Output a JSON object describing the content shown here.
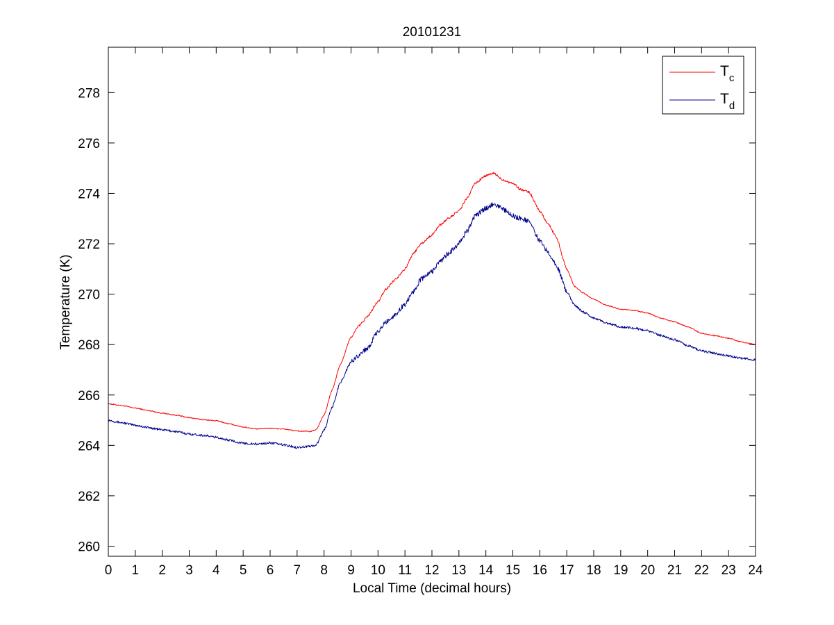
{
  "chart_data": {
    "type": "line",
    "title": "20101231",
    "xlabel": "Local Time (decimal hours)",
    "ylabel": "Temperature (K)",
    "xlim": [
      0,
      24
    ],
    "ylim": [
      259.6,
      279.8
    ],
    "xticks": [
      0,
      1,
      2,
      3,
      4,
      5,
      6,
      7,
      8,
      9,
      10,
      11,
      12,
      13,
      14,
      15,
      16,
      17,
      18,
      19,
      20,
      21,
      22,
      23,
      24
    ],
    "yticks": [
      260,
      262,
      264,
      266,
      268,
      270,
      272,
      274,
      276,
      278
    ],
    "grid": false,
    "legend_position": "top-right",
    "series": [
      {
        "name": "T",
        "name_subscript": "c",
        "color": "#ff0000",
        "x": [
          0,
          0.5,
          1,
          1.5,
          2,
          2.5,
          3,
          3.5,
          4,
          4.5,
          5,
          5.5,
          6,
          6.5,
          7,
          7.5,
          7.7,
          8,
          8.3,
          8.6,
          9,
          9.3,
          9.6,
          10,
          10.3,
          10.6,
          11,
          11.3,
          11.6,
          12,
          12.3,
          12.6,
          13,
          13.3,
          13.6,
          14,
          14.3,
          14.6,
          15,
          15.3,
          15.6,
          16,
          16.3,
          16.6,
          17,
          17.3,
          17.6,
          18,
          18.5,
          19,
          19.5,
          20,
          20.5,
          21,
          21.5,
          22,
          22.5,
          23,
          23.5,
          24
        ],
        "y": [
          265.65,
          265.58,
          265.48,
          265.38,
          265.28,
          265.2,
          265.1,
          265.02,
          264.98,
          264.85,
          264.73,
          264.65,
          264.68,
          264.65,
          264.57,
          264.55,
          264.62,
          265.2,
          266.2,
          267.2,
          268.3,
          268.75,
          269.1,
          269.7,
          270.2,
          270.55,
          271.0,
          271.6,
          272.0,
          272.35,
          272.75,
          273.0,
          273.3,
          273.8,
          274.4,
          274.7,
          274.8,
          274.55,
          274.4,
          274.15,
          274.05,
          273.3,
          272.8,
          272.3,
          271.0,
          270.3,
          270.05,
          269.8,
          269.55,
          269.4,
          269.35,
          269.25,
          269.05,
          268.9,
          268.7,
          268.45,
          268.35,
          268.25,
          268.1,
          268.0
        ]
      },
      {
        "name": "T",
        "name_subscript": "d",
        "color": "#00008b",
        "x": [
          0,
          0.5,
          1,
          1.5,
          2,
          2.5,
          3,
          3.5,
          4,
          4.5,
          5,
          5.5,
          6,
          6.5,
          7,
          7.5,
          7.7,
          8,
          8.3,
          8.6,
          9,
          9.3,
          9.6,
          10,
          10.3,
          10.6,
          11,
          11.3,
          11.6,
          12,
          12.3,
          12.6,
          13,
          13.3,
          13.6,
          14,
          14.3,
          14.6,
          15,
          15.3,
          15.6,
          16,
          16.3,
          16.6,
          17,
          17.3,
          17.6,
          18,
          18.5,
          19,
          19.5,
          20,
          20.5,
          21,
          21.5,
          22,
          22.5,
          23,
          23.5,
          24
        ],
        "y": [
          265.0,
          264.9,
          264.8,
          264.7,
          264.62,
          264.55,
          264.45,
          264.4,
          264.32,
          264.2,
          264.08,
          264.05,
          264.1,
          264.02,
          263.92,
          263.97,
          264.0,
          264.6,
          265.5,
          266.5,
          267.3,
          267.6,
          267.85,
          268.5,
          268.9,
          269.15,
          269.6,
          270.1,
          270.6,
          270.9,
          271.3,
          271.6,
          272.0,
          272.5,
          273.1,
          273.4,
          273.6,
          273.4,
          273.1,
          273.0,
          272.9,
          272.1,
          271.7,
          271.2,
          270.1,
          269.55,
          269.3,
          269.05,
          268.85,
          268.7,
          268.65,
          268.55,
          268.35,
          268.2,
          267.95,
          267.75,
          267.65,
          267.55,
          267.45,
          267.4
        ]
      }
    ]
  }
}
